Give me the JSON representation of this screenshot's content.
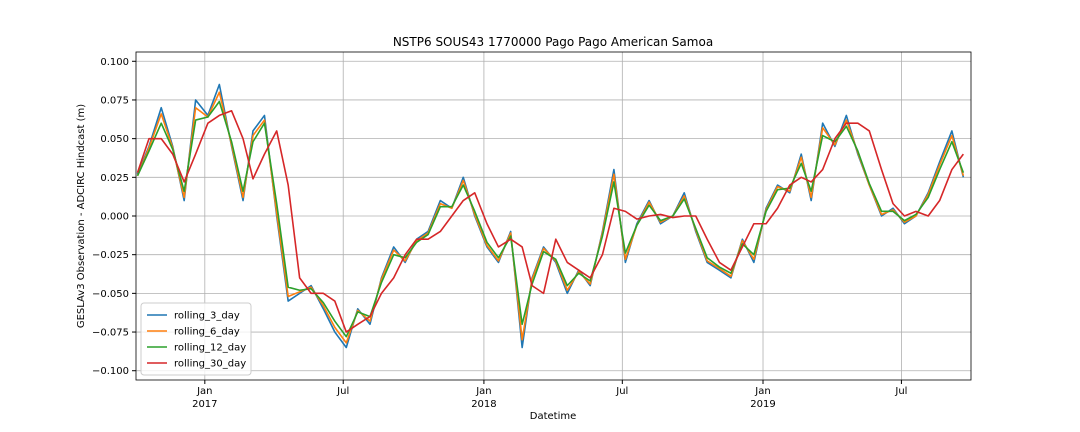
{
  "chart_data": {
    "type": "line",
    "title": "NSTP6 SOUS43 1770000 Pago Pago American Samoa",
    "x_label": "Datetime",
    "y_label": "GESLAv3 Observation - ADCIRC Hindcast (m)",
    "xlim": [
      "2016-10-03",
      "2019-09-30"
    ],
    "ylim": [
      -0.106,
      0.106
    ],
    "grid": true,
    "legend": "lower left",
    "xticks": [
      {
        "value": "2017-01-01",
        "label": "Jan\n2017"
      },
      {
        "value": "2017-07-01",
        "label": "Jul"
      },
      {
        "value": "2018-01-01",
        "label": "Jan\n2018"
      },
      {
        "value": "2018-07-01",
        "label": "Jul"
      },
      {
        "value": "2019-01-01",
        "label": "Jan\n2019"
      },
      {
        "value": "2019-07-01",
        "label": "Jul"
      }
    ],
    "yticks": [
      {
        "value": 0.1,
        "label": "0.100"
      },
      {
        "value": 0.075,
        "label": "0.075"
      },
      {
        "value": 0.05,
        "label": "0.050"
      },
      {
        "value": 0.025,
        "label": "0.025"
      },
      {
        "value": 0,
        "label": "0.000"
      },
      {
        "value": -0.025,
        "label": "−0.025"
      },
      {
        "value": -0.05,
        "label": "−0.050"
      },
      {
        "value": -0.075,
        "label": "−0.075"
      },
      {
        "value": -0.1,
        "label": "−0.100"
      }
    ],
    "x": [
      "2016-10-05",
      "2016-10-20",
      "2016-11-05",
      "2016-11-20",
      "2016-12-05",
      "2016-12-20",
      "2017-01-05",
      "2017-01-20",
      "2017-02-05",
      "2017-02-20",
      "2017-03-05",
      "2017-03-20",
      "2017-04-05",
      "2017-04-20",
      "2017-05-05",
      "2017-05-20",
      "2017-06-05",
      "2017-06-20",
      "2017-07-05",
      "2017-07-20",
      "2017-08-05",
      "2017-08-20",
      "2017-09-05",
      "2017-09-20",
      "2017-10-05",
      "2017-10-20",
      "2017-11-05",
      "2017-11-20",
      "2017-12-05",
      "2017-12-20",
      "2018-01-05",
      "2018-01-20",
      "2018-02-05",
      "2018-02-20",
      "2018-03-05",
      "2018-03-20",
      "2018-04-05",
      "2018-04-20",
      "2018-05-05",
      "2018-05-20",
      "2018-06-05",
      "2018-06-20",
      "2018-07-05",
      "2018-07-20",
      "2018-08-05",
      "2018-08-20",
      "2018-09-05",
      "2018-09-20",
      "2018-10-05",
      "2018-10-20",
      "2018-11-05",
      "2018-11-20",
      "2018-12-05",
      "2018-12-20",
      "2019-01-05",
      "2019-01-20",
      "2019-02-05",
      "2019-02-20",
      "2019-03-05",
      "2019-03-20",
      "2019-04-05",
      "2019-04-20",
      "2019-05-05",
      "2019-05-20",
      "2019-06-05",
      "2019-06-20",
      "2019-07-05",
      "2019-07-20",
      "2019-08-05",
      "2019-08-20",
      "2019-09-05",
      "2019-09-20"
    ],
    "series": [
      {
        "name": "rolling_3_day",
        "color": "#1f77b4",
        "values": [
          0.027,
          0.045,
          0.07,
          0.045,
          0.01,
          0.075,
          0.065,
          0.085,
          0.045,
          0.01,
          0.055,
          0.065,
          0.0,
          -0.055,
          -0.05,
          -0.045,
          -0.06,
          -0.075,
          -0.085,
          -0.06,
          -0.07,
          -0.04,
          -0.02,
          -0.03,
          -0.015,
          -0.01,
          0.01,
          0.005,
          0.025,
          0.0,
          -0.02,
          -0.03,
          -0.01,
          -0.085,
          -0.04,
          -0.02,
          -0.03,
          -0.05,
          -0.035,
          -0.045,
          -0.01,
          0.03,
          -0.03,
          -0.005,
          0.01,
          -0.005,
          0.0,
          0.015,
          -0.01,
          -0.03,
          -0.035,
          -0.04,
          -0.015,
          -0.03,
          0.005,
          0.02,
          0.015,
          0.04,
          0.01,
          0.06,
          0.045,
          0.065,
          0.04,
          0.02,
          0.0,
          0.005,
          -0.005,
          0.0,
          0.015,
          0.035,
          0.055,
          0.025
        ]
      },
      {
        "name": "rolling_6_day",
        "color": "#ff7f0e",
        "values": [
          0.026,
          0.044,
          0.066,
          0.044,
          0.012,
          0.07,
          0.064,
          0.08,
          0.046,
          0.012,
          0.052,
          0.062,
          0.002,
          -0.052,
          -0.049,
          -0.046,
          -0.058,
          -0.072,
          -0.082,
          -0.061,
          -0.068,
          -0.041,
          -0.022,
          -0.029,
          -0.016,
          -0.011,
          0.008,
          0.005,
          0.023,
          0.001,
          -0.019,
          -0.029,
          -0.011,
          -0.08,
          -0.041,
          -0.021,
          -0.029,
          -0.048,
          -0.036,
          -0.044,
          -0.011,
          0.027,
          -0.028,
          -0.006,
          0.009,
          -0.004,
          0.0,
          0.013,
          -0.009,
          -0.029,
          -0.034,
          -0.039,
          -0.016,
          -0.028,
          0.004,
          0.019,
          0.016,
          0.038,
          0.012,
          0.057,
          0.046,
          0.062,
          0.041,
          0.02,
          0.001,
          0.004,
          -0.004,
          0.0,
          0.014,
          0.033,
          0.052,
          0.026
        ]
      },
      {
        "name": "rolling_12_day",
        "color": "#2ca02c",
        "values": [
          0.026,
          0.042,
          0.06,
          0.043,
          0.016,
          0.062,
          0.064,
          0.074,
          0.048,
          0.016,
          0.048,
          0.06,
          0.008,
          -0.046,
          -0.048,
          -0.047,
          -0.056,
          -0.068,
          -0.078,
          -0.062,
          -0.065,
          -0.043,
          -0.025,
          -0.027,
          -0.017,
          -0.012,
          0.006,
          0.006,
          0.02,
          0.003,
          -0.017,
          -0.027,
          -0.013,
          -0.07,
          -0.044,
          -0.023,
          -0.028,
          -0.045,
          -0.037,
          -0.042,
          -0.013,
          0.022,
          -0.024,
          -0.006,
          0.007,
          -0.003,
          0.0,
          0.011,
          -0.008,
          -0.027,
          -0.033,
          -0.037,
          -0.018,
          -0.025,
          0.003,
          0.017,
          0.018,
          0.034,
          0.016,
          0.052,
          0.048,
          0.058,
          0.042,
          0.021,
          0.003,
          0.003,
          -0.003,
          0.001,
          0.012,
          0.03,
          0.048,
          0.028
        ]
      },
      {
        "name": "rolling_30_day",
        "color": "#d62728",
        "values": [
          0.028,
          0.05,
          0.05,
          0.04,
          0.022,
          0.04,
          0.06,
          0.065,
          0.068,
          0.05,
          0.024,
          0.04,
          0.055,
          0.02,
          -0.04,
          -0.05,
          -0.05,
          -0.055,
          -0.075,
          -0.07,
          -0.065,
          -0.05,
          -0.04,
          -0.025,
          -0.015,
          -0.015,
          -0.01,
          0.0,
          0.01,
          0.015,
          -0.005,
          -0.02,
          -0.015,
          -0.02,
          -0.045,
          -0.05,
          -0.015,
          -0.03,
          -0.035,
          -0.04,
          -0.025,
          0.005,
          0.003,
          -0.002,
          0.0,
          0.001,
          -0.001,
          0.0,
          0.0,
          -0.015,
          -0.03,
          -0.035,
          -0.02,
          -0.005,
          -0.005,
          0.005,
          0.02,
          0.025,
          0.022,
          0.03,
          0.05,
          0.06,
          0.06,
          0.055,
          0.03,
          0.008,
          0.0,
          0.003,
          0.0,
          0.01,
          0.03,
          0.04
        ]
      }
    ]
  }
}
